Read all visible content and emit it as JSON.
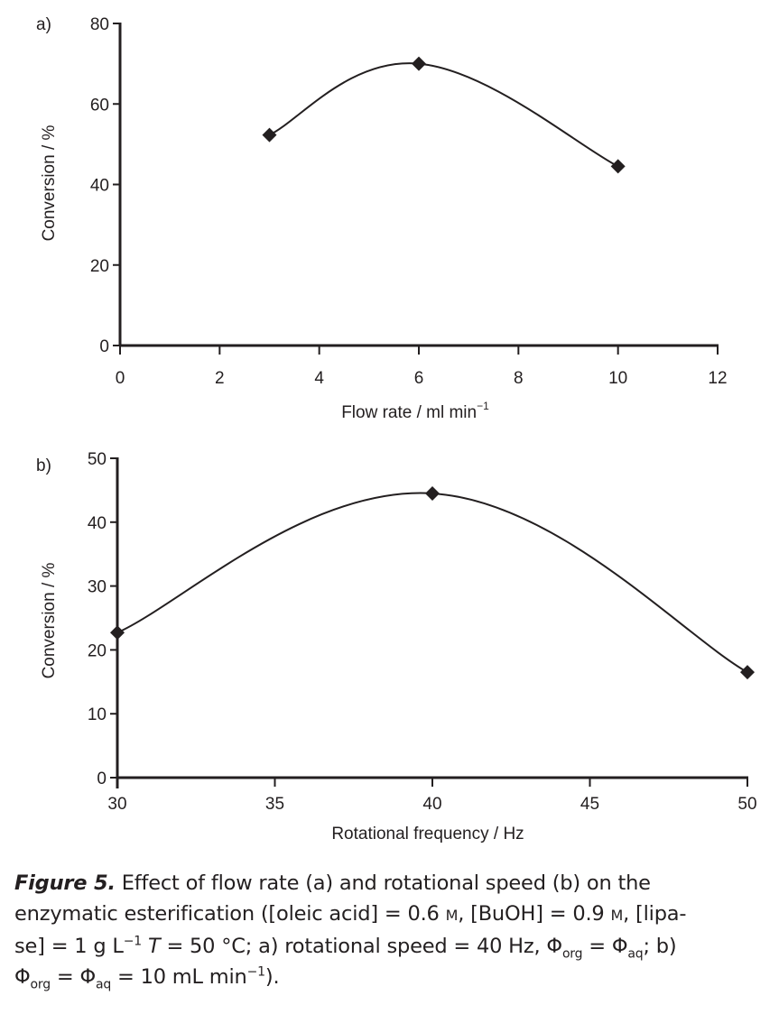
{
  "chart_data": [
    {
      "type": "line",
      "panel_label": "a)",
      "title": "",
      "xlabel": "Flow rate / ml min",
      "xlabel_superscript": "−1",
      "ylabel": "Conversion / %",
      "xlim": [
        0,
        12
      ],
      "ylim": [
        0,
        80
      ],
      "x_ticks": [
        0,
        2,
        4,
        6,
        8,
        10,
        12
      ],
      "y_ticks": [
        0,
        20,
        40,
        60,
        80
      ],
      "grid": false,
      "series": [
        {
          "name": "Conversion",
          "marker": "diamond",
          "smooth": true,
          "x": [
            3,
            6,
            10
          ],
          "values": [
            52.3,
            70.0,
            44.5
          ]
        }
      ]
    },
    {
      "type": "line",
      "panel_label": "b)",
      "title": "",
      "xlabel": "Rotational frequency / Hz",
      "xlabel_superscript": "",
      "ylabel": "Conversion / %",
      "xlim": [
        30,
        50
      ],
      "ylim": [
        0,
        50
      ],
      "x_ticks": [
        30,
        35,
        40,
        45,
        50
      ],
      "y_ticks": [
        0,
        10,
        20,
        30,
        40,
        50
      ],
      "grid": false,
      "series": [
        {
          "name": "Conversion",
          "marker": "diamond",
          "smooth": true,
          "x": [
            30,
            40,
            50
          ],
          "values": [
            22.7,
            44.5,
            16.5
          ]
        }
      ]
    }
  ],
  "caption": {
    "figure_label": "Figure 5.",
    "line1": " Effect of flow rate (a) and rotational speed (b) on the",
    "line2a": "enzymatic esterification ([oleic acid] = 0.6 ",
    "unit_M": "M",
    "line2b": ", [BuOH] = 0.9 ",
    "line2c": ", [lipa-",
    "line3a": "se] = 1 g L",
    "sup_minus1": "−1",
    "T": "T",
    "line3b": " = 50 °C; a) rotational speed = 40 Hz, ",
    "phi": "Φ",
    "sub_org": "org",
    "eq": " = ",
    "sub_aq": "aq",
    "line3c": "; b)",
    "line4b": " = 10 mL min",
    "line4c": ")."
  },
  "colors": {
    "ink": "#231f20",
    "background": "#ffffff"
  }
}
